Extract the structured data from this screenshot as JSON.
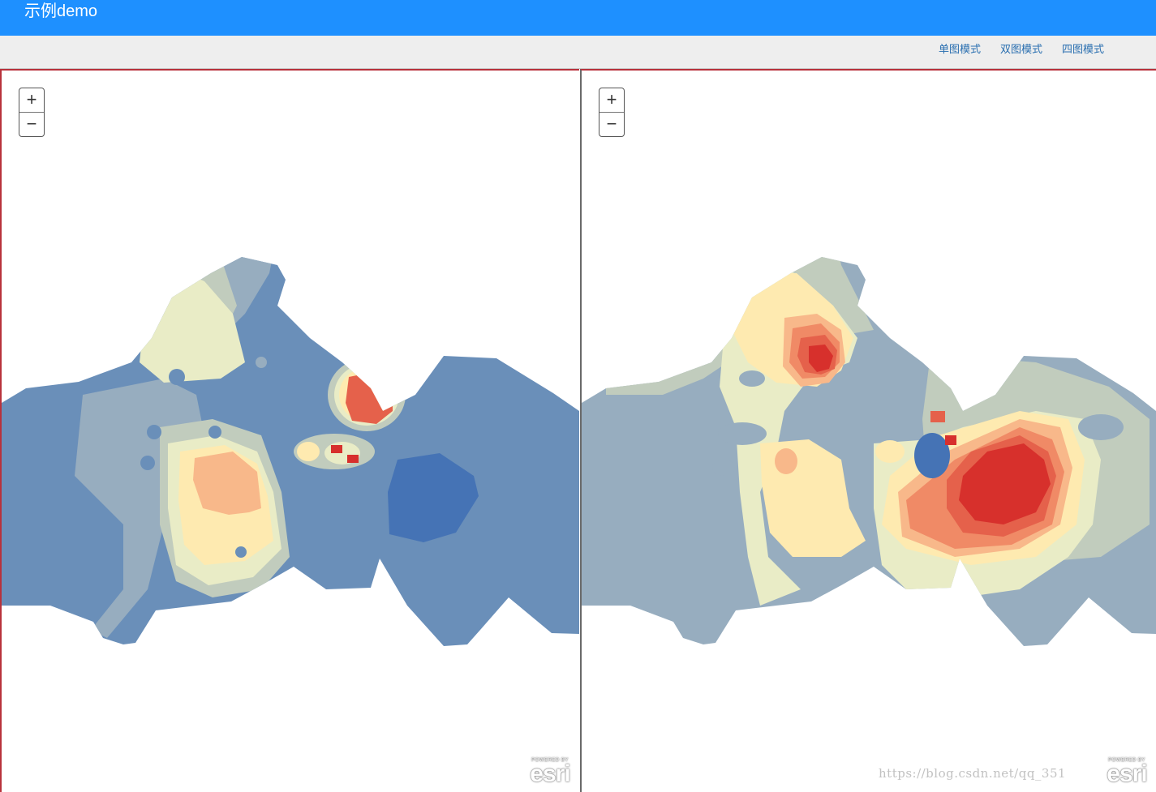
{
  "header": {
    "title": "示例demo"
  },
  "toolbar": {
    "modes": [
      {
        "label": "单图模式"
      },
      {
        "label": "双图模式"
      },
      {
        "label": "四图模式"
      }
    ]
  },
  "maps": {
    "zoom_in": "+",
    "zoom_out": "−",
    "attribution_top": "POWERED BY",
    "attribution_name": "esri"
  },
  "palette": {
    "dark_blue": "#4573b5",
    "blue": "#6a8fb9",
    "blue_gray": "#97adbf",
    "gray_green": "#c1ccbd",
    "pale_yellow": "#e9ecc6",
    "light_yellow": "#feeab0",
    "peach": "#f8b88a",
    "salmon": "#f08a66",
    "orange_red": "#e5614b",
    "red": "#d7302c",
    "header_blue": "#1e90ff",
    "frame_red": "#b8323c"
  },
  "watermark": "https://blog.csdn.net/qq_351"
}
